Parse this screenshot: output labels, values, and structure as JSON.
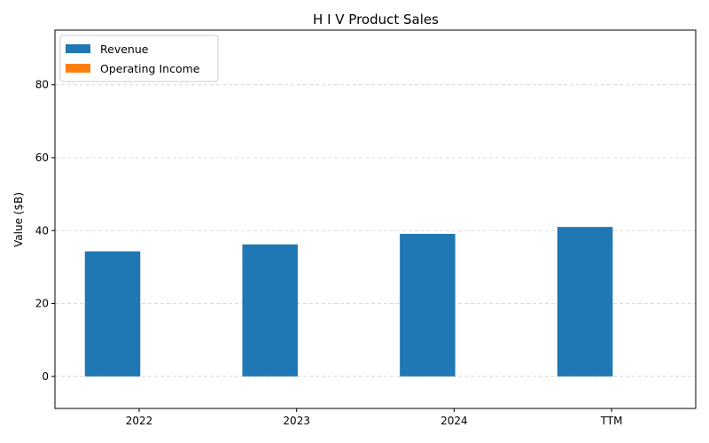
{
  "chart_data": {
    "type": "bar",
    "title": "H I V Product Sales",
    "xlabel": "",
    "ylabel": "Value ($B)",
    "categories": [
      "2022",
      "2023",
      "2024",
      "TTM"
    ],
    "series": [
      {
        "name": "Revenue",
        "color": "#1f77b4",
        "values": [
          34.3,
          36.2,
          39.1,
          41.0
        ]
      },
      {
        "name": "Operating Income",
        "color": "#ff7f0e",
        "values": [
          0,
          0,
          0,
          0
        ]
      }
    ],
    "ylim": [
      -8.8,
      95
    ],
    "yticks": [
      "0",
      "20",
      "40",
      "60",
      "80"
    ],
    "grid": "y-dashed",
    "legend_position": "top-left"
  }
}
